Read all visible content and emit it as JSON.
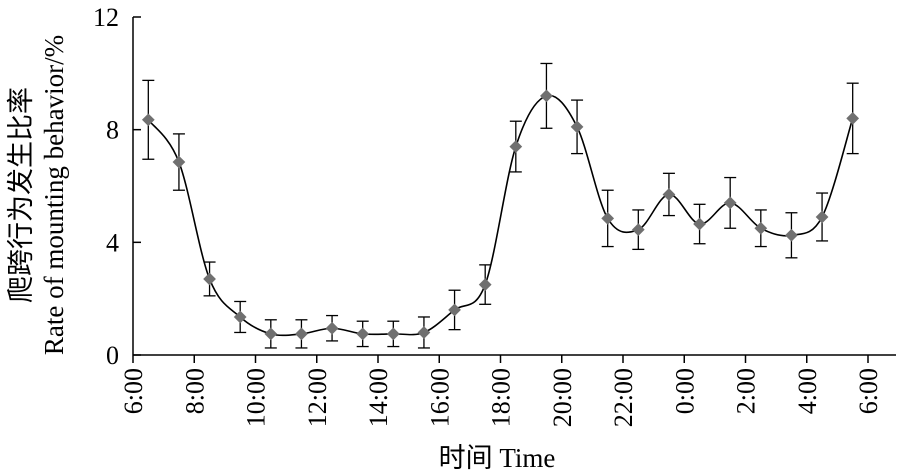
{
  "chart_data": {
    "type": "line",
    "xlabel": "时间 Time",
    "ylabel_line1": "爬跨行为发生比率",
    "ylabel_line2": "Rate of mounting behavior/%",
    "ylim": [
      0,
      12
    ],
    "yticks": [
      0,
      4,
      8,
      12
    ],
    "xticks": [
      "6:00",
      "8:00",
      "10:00",
      "12:00",
      "14:00",
      "16:00",
      "18:00",
      "20:00",
      "22:00",
      "0:00",
      "2:00",
      "4:00",
      "6:00"
    ],
    "grid": false,
    "x": [
      "6:30",
      "7:30",
      "8:30",
      "9:30",
      "10:30",
      "11:30",
      "12:30",
      "13:30",
      "14:30",
      "15:30",
      "16:30",
      "17:30",
      "18:30",
      "19:30",
      "20:30",
      "21:30",
      "22:30",
      "23:30",
      "0:30",
      "1:30",
      "2:30",
      "3:30",
      "4:30",
      "5:30"
    ],
    "series": [
      {
        "values": [
          8.35,
          6.85,
          2.7,
          1.35,
          0.75,
          0.75,
          0.95,
          0.75,
          0.75,
          0.8,
          1.6,
          2.5,
          7.4,
          9.2,
          8.1,
          4.85,
          4.45,
          5.7,
          4.65,
          5.4,
          4.5,
          4.25,
          4.9,
          8.4
        ],
        "error": [
          1.4,
          1.0,
          0.6,
          0.55,
          0.5,
          0.5,
          0.45,
          0.45,
          0.45,
          0.55,
          0.7,
          0.7,
          0.9,
          1.15,
          0.95,
          1.0,
          0.7,
          0.75,
          0.7,
          0.9,
          0.65,
          0.8,
          0.85,
          1.25
        ]
      }
    ],
    "colors": {
      "line": "#000000",
      "marker": "#707070",
      "axis": "#000000"
    }
  }
}
